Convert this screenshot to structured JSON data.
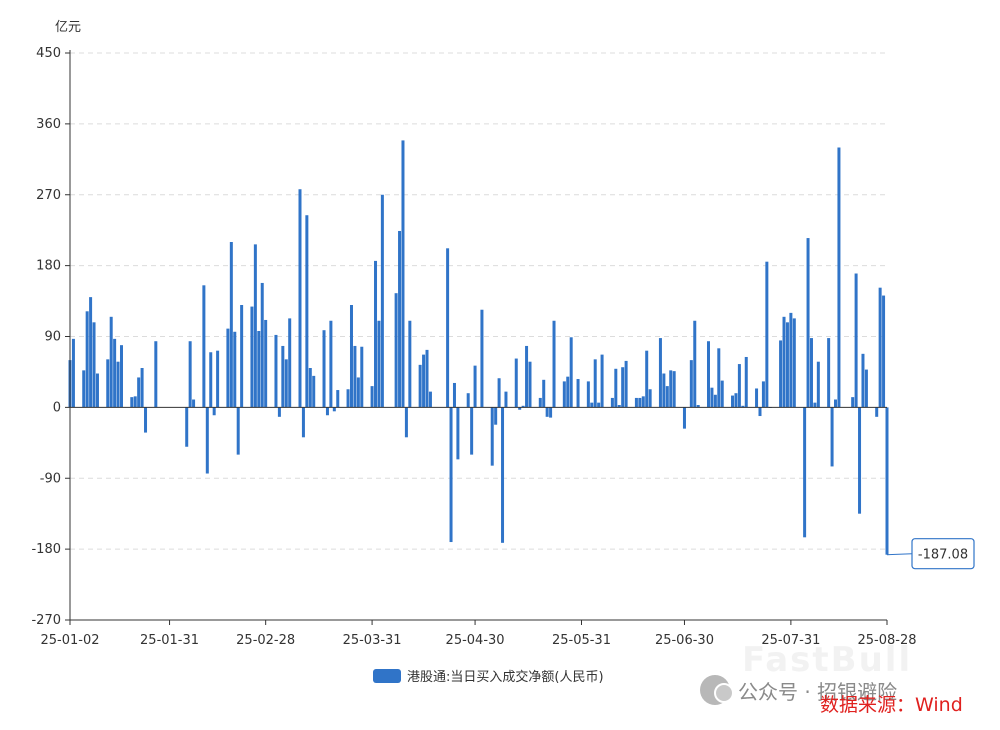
{
  "chart_data": {
    "type": "bar",
    "title": "",
    "ylabel": "亿元",
    "ylim": [
      -270,
      450
    ],
    "yticks": [
      450,
      360,
      270,
      180,
      90,
      0,
      -90,
      -180,
      -270
    ],
    "x_ticks": [
      "25-01-02",
      "25-01-31",
      "25-02-28",
      "25-03-31",
      "25-04-30",
      "25-05-31",
      "25-06-30",
      "25-07-31",
      "25-08-28"
    ],
    "grid": "horizontal-dashed",
    "legend_position": "bottom-center",
    "color": "#3074c8",
    "series": [
      {
        "name": "港股通:当日买入成交净额(人民币)",
        "values": [
          {
            "x": "25-01-02",
            "y": 60
          },
          {
            "x": "25-01-03",
            "y": 87
          },
          {
            "x": "25-01-06",
            "y": 47
          },
          {
            "x": "25-01-07",
            "y": 122
          },
          {
            "x": "25-01-08",
            "y": 140
          },
          {
            "x": "25-01-09",
            "y": 108
          },
          {
            "x": "25-01-10",
            "y": 43
          },
          {
            "x": "25-01-13",
            "y": 61
          },
          {
            "x": "25-01-14",
            "y": 115
          },
          {
            "x": "25-01-15",
            "y": 87
          },
          {
            "x": "25-01-16",
            "y": 58
          },
          {
            "x": "25-01-17",
            "y": 79
          },
          {
            "x": "25-01-20",
            "y": 13
          },
          {
            "x": "25-01-21",
            "y": 14
          },
          {
            "x": "25-01-22",
            "y": 38
          },
          {
            "x": "25-01-23",
            "y": 50
          },
          {
            "x": "25-01-24",
            "y": -32
          },
          {
            "x": "25-01-27",
            "y": 84
          },
          {
            "x": "25-02-05",
            "y": -50
          },
          {
            "x": "25-02-06",
            "y": 84
          },
          {
            "x": "25-02-07",
            "y": 10
          },
          {
            "x": "25-02-10",
            "y": 155
          },
          {
            "x": "25-02-11",
            "y": -84
          },
          {
            "x": "25-02-12",
            "y": 70
          },
          {
            "x": "25-02-13",
            "y": -10
          },
          {
            "x": "25-02-14",
            "y": 72
          },
          {
            "x": "25-02-17",
            "y": 100
          },
          {
            "x": "25-02-18",
            "y": 210
          },
          {
            "x": "25-02-19",
            "y": 96
          },
          {
            "x": "25-02-20",
            "y": -60
          },
          {
            "x": "25-02-21",
            "y": 130
          },
          {
            "x": "25-02-24",
            "y": 128
          },
          {
            "x": "25-02-25",
            "y": 207
          },
          {
            "x": "25-02-26",
            "y": 97
          },
          {
            "x": "25-02-27",
            "y": 158
          },
          {
            "x": "25-02-28",
            "y": 111
          },
          {
            "x": "25-03-03",
            "y": 92
          },
          {
            "x": "25-03-04",
            "y": -12
          },
          {
            "x": "25-03-05",
            "y": 78
          },
          {
            "x": "25-03-06",
            "y": 61
          },
          {
            "x": "25-03-07",
            "y": 113
          },
          {
            "x": "25-03-10",
            "y": 277
          },
          {
            "x": "25-03-11",
            "y": -38
          },
          {
            "x": "25-03-12",
            "y": 244
          },
          {
            "x": "25-03-13",
            "y": 50
          },
          {
            "x": "25-03-14",
            "y": 40
          },
          {
            "x": "25-03-17",
            "y": 98
          },
          {
            "x": "25-03-18",
            "y": -10
          },
          {
            "x": "25-03-19",
            "y": 110
          },
          {
            "x": "25-03-20",
            "y": -5
          },
          {
            "x": "25-03-21",
            "y": 22
          },
          {
            "x": "25-03-24",
            "y": 23
          },
          {
            "x": "25-03-25",
            "y": 130
          },
          {
            "x": "25-03-26",
            "y": 78
          },
          {
            "x": "25-03-27",
            "y": 38
          },
          {
            "x": "25-03-28",
            "y": 77
          },
          {
            "x": "25-03-31",
            "y": 27
          },
          {
            "x": "25-04-01",
            "y": 186
          },
          {
            "x": "25-04-02",
            "y": 110
          },
          {
            "x": "25-04-03",
            "y": 270
          },
          {
            "x": "25-04-07",
            "y": 145
          },
          {
            "x": "25-04-08",
            "y": 224
          },
          {
            "x": "25-04-09",
            "y": 339
          },
          {
            "x": "25-04-10",
            "y": -38
          },
          {
            "x": "25-04-11",
            "y": 110
          },
          {
            "x": "25-04-14",
            "y": 54
          },
          {
            "x": "25-04-15",
            "y": 67
          },
          {
            "x": "25-04-16",
            "y": 73
          },
          {
            "x": "25-04-17",
            "y": 20
          },
          {
            "x": "25-04-22",
            "y": 202
          },
          {
            "x": "25-04-23",
            "y": -171
          },
          {
            "x": "25-04-24",
            "y": 31
          },
          {
            "x": "25-04-25",
            "y": -66
          },
          {
            "x": "25-04-28",
            "y": 18
          },
          {
            "x": "25-04-29",
            "y": -60
          },
          {
            "x": "25-04-30",
            "y": 53
          },
          {
            "x": "25-05-02",
            "y": 124
          },
          {
            "x": "25-05-05",
            "y": -74
          },
          {
            "x": "25-05-06",
            "y": -22
          },
          {
            "x": "25-05-07",
            "y": 37
          },
          {
            "x": "25-05-08",
            "y": -172
          },
          {
            "x": "25-05-09",
            "y": 20
          },
          {
            "x": "25-05-12",
            "y": 62
          },
          {
            "x": "25-05-13",
            "y": -3
          },
          {
            "x": "25-05-14",
            "y": 2
          },
          {
            "x": "25-05-15",
            "y": 78
          },
          {
            "x": "25-05-16",
            "y": 58
          },
          {
            "x": "25-05-19",
            "y": 12
          },
          {
            "x": "25-05-20",
            "y": 35
          },
          {
            "x": "25-05-21",
            "y": -12
          },
          {
            "x": "25-05-22",
            "y": -13
          },
          {
            "x": "25-05-23",
            "y": 110
          },
          {
            "x": "25-05-26",
            "y": 33
          },
          {
            "x": "25-05-27",
            "y": 39
          },
          {
            "x": "25-05-28",
            "y": 89
          },
          {
            "x": "25-05-30",
            "y": 36
          },
          {
            "x": "25-06-02",
            "y": 33
          },
          {
            "x": "25-06-03",
            "y": 6
          },
          {
            "x": "25-06-04",
            "y": 61
          },
          {
            "x": "25-06-05",
            "y": 6
          },
          {
            "x": "25-06-06",
            "y": 67
          },
          {
            "x": "25-06-09",
            "y": 12
          },
          {
            "x": "25-06-10",
            "y": 49
          },
          {
            "x": "25-06-11",
            "y": 3
          },
          {
            "x": "25-06-12",
            "y": 51
          },
          {
            "x": "25-06-13",
            "y": 59
          },
          {
            "x": "25-06-16",
            "y": 12
          },
          {
            "x": "25-06-17",
            "y": 12
          },
          {
            "x": "25-06-18",
            "y": 14
          },
          {
            "x": "25-06-19",
            "y": 72
          },
          {
            "x": "25-06-20",
            "y": 23
          },
          {
            "x": "25-06-23",
            "y": 88
          },
          {
            "x": "25-06-24",
            "y": 43
          },
          {
            "x": "25-06-25",
            "y": 27
          },
          {
            "x": "25-06-26",
            "y": 47
          },
          {
            "x": "25-06-27",
            "y": 46
          },
          {
            "x": "25-06-30",
            "y": -27
          },
          {
            "x": "25-07-02",
            "y": 60
          },
          {
            "x": "25-07-03",
            "y": 110
          },
          {
            "x": "25-07-04",
            "y": 3
          },
          {
            "x": "25-07-07",
            "y": 84
          },
          {
            "x": "25-07-08",
            "y": 25
          },
          {
            "x": "25-07-09",
            "y": 16
          },
          {
            "x": "25-07-10",
            "y": 75
          },
          {
            "x": "25-07-11",
            "y": 34
          },
          {
            "x": "25-07-14",
            "y": 15
          },
          {
            "x": "25-07-15",
            "y": 18
          },
          {
            "x": "25-07-16",
            "y": 55
          },
          {
            "x": "25-07-17",
            "y": 2
          },
          {
            "x": "25-07-18",
            "y": 64
          },
          {
            "x": "25-07-21",
            "y": 24
          },
          {
            "x": "25-07-22",
            "y": -11
          },
          {
            "x": "25-07-23",
            "y": 33
          },
          {
            "x": "25-07-24",
            "y": 185
          },
          {
            "x": "25-07-25",
            "y": 0
          },
          {
            "x": "25-07-28",
            "y": 85
          },
          {
            "x": "25-07-29",
            "y": 115
          },
          {
            "x": "25-07-30",
            "y": 108
          },
          {
            "x": "25-07-31",
            "y": 120
          },
          {
            "x": "25-08-01",
            "y": 113
          },
          {
            "x": "25-08-04",
            "y": -165
          },
          {
            "x": "25-08-05",
            "y": 215
          },
          {
            "x": "25-08-06",
            "y": 88
          },
          {
            "x": "25-08-07",
            "y": 6
          },
          {
            "x": "25-08-08",
            "y": 58
          },
          {
            "x": "25-08-11",
            "y": 88
          },
          {
            "x": "25-08-12",
            "y": -75
          },
          {
            "x": "25-08-13",
            "y": 10
          },
          {
            "x": "25-08-14",
            "y": 330
          },
          {
            "x": "25-08-18",
            "y": 13
          },
          {
            "x": "25-08-19",
            "y": 170
          },
          {
            "x": "25-08-20",
            "y": -135
          },
          {
            "x": "25-08-21",
            "y": 68
          },
          {
            "x": "25-08-22",
            "y": 48
          },
          {
            "x": "25-08-25",
            "y": -12
          },
          {
            "x": "25-08-26",
            "y": 152
          },
          {
            "x": "25-08-27",
            "y": 142
          },
          {
            "x": "25-08-28",
            "y": -187.08
          }
        ]
      }
    ],
    "callout": {
      "x": "25-08-28",
      "label": "-187.08"
    }
  },
  "footer": {
    "watermark_text": "公众号 · 招银避险",
    "brand_mark": "FastBull",
    "source_text": "数据来源：Wind",
    "watermark_icon": "wechat-icon"
  }
}
